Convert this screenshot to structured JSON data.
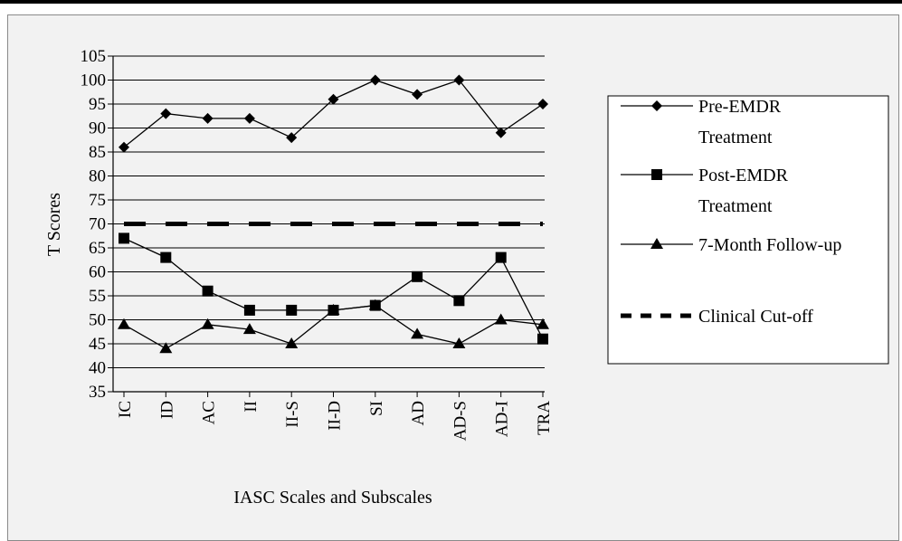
{
  "chart_data": {
    "type": "line",
    "ylabel": "T Scores",
    "xlabel": "IASC Scales and Subscales",
    "ylim": [
      35,
      105
    ],
    "yticks": [
      35,
      40,
      45,
      50,
      55,
      60,
      65,
      70,
      75,
      80,
      85,
      90,
      95,
      100,
      105
    ],
    "categories": [
      "IC",
      "ID",
      "AC",
      "II",
      "II-S",
      "II-D",
      "SI",
      "AD",
      "AD-S",
      "AD-I",
      "TRA"
    ],
    "grid": "horizontal",
    "legend_position": "right",
    "series": [
      {
        "name": "Pre-EMDR Treatment",
        "legend_lines": [
          "Pre-EMDR",
          "Treatment"
        ],
        "marker": "diamond",
        "line": "solid",
        "values": [
          86,
          93,
          92,
          92,
          88,
          96,
          100,
          97,
          100,
          89,
          95
        ]
      },
      {
        "name": "Post-EMDR Treatment",
        "legend_lines": [
          "Post-EMDR",
          "Treatment"
        ],
        "marker": "square",
        "line": "solid",
        "values": [
          67,
          63,
          56,
          52,
          52,
          52,
          53,
          59,
          54,
          63,
          46
        ]
      },
      {
        "name": "7-Month Follow-up",
        "legend_lines": [
          "7-Month Follow-up"
        ],
        "marker": "triangle",
        "line": "solid",
        "values": [
          49,
          44,
          49,
          48,
          45,
          52,
          53,
          47,
          45,
          50,
          49
        ]
      },
      {
        "name": "Clinical Cut-off",
        "legend_lines": [
          "Clinical Cut-off"
        ],
        "marker": "none",
        "line": "dashed",
        "values": [
          70,
          70,
          70,
          70,
          70,
          70,
          70,
          70,
          70,
          70,
          70
        ]
      }
    ]
  }
}
